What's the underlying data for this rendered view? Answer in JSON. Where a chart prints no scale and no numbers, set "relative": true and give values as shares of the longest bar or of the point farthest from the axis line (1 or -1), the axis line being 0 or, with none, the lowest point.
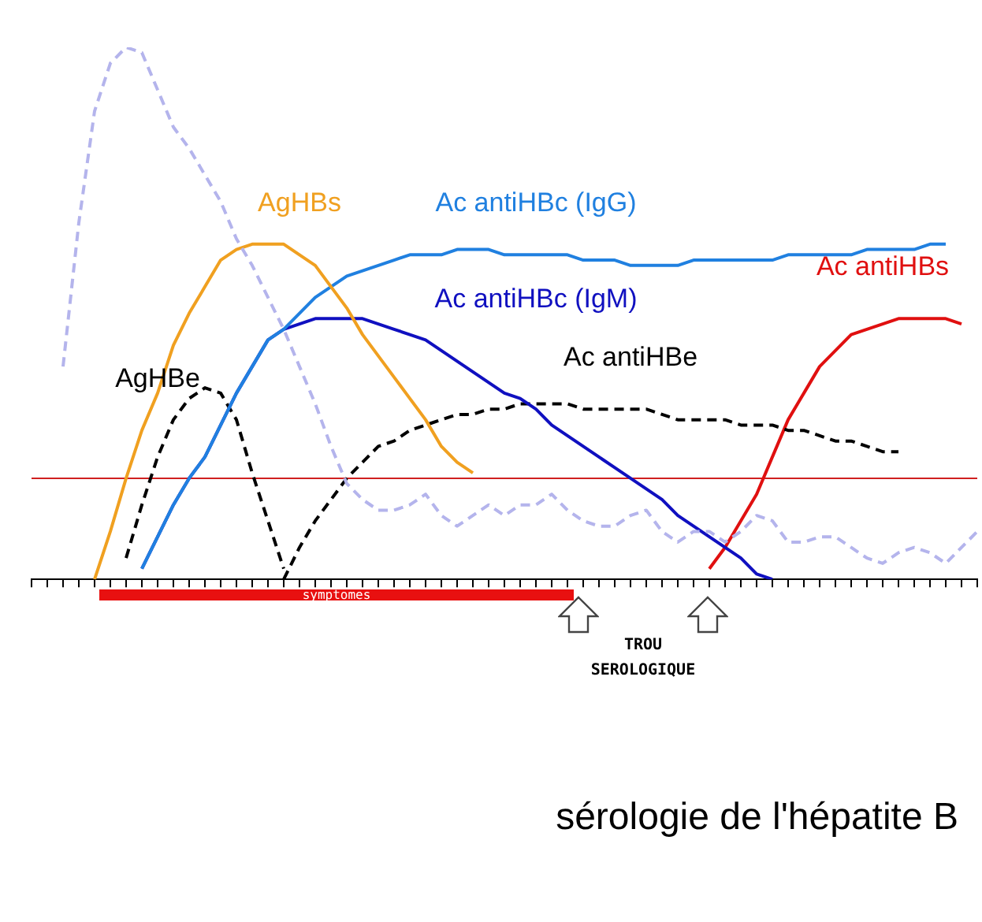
{
  "chart_data": {
    "type": "line",
    "title": "sérologie de l'hépatite B",
    "relative": true,
    "legend": false,
    "grid": false,
    "marker": "none",
    "categories": [
      null,
      null,
      null,
      null,
      null,
      null,
      null,
      null,
      null,
      null,
      null,
      null,
      null,
      null,
      null,
      null,
      null,
      null,
      null,
      null,
      null,
      null,
      null,
      null,
      null,
      null,
      null,
      null,
      null,
      null,
      null,
      null,
      null,
      null,
      null,
      null,
      null,
      null,
      null,
      null,
      null,
      null,
      null,
      null,
      null,
      null,
      null,
      null,
      null,
      null,
      null,
      null,
      null,
      null,
      null,
      null,
      null,
      null,
      null,
      null,
      null
    ],
    "series": [
      {
        "color": "#b4b4ec",
        "line_style": "dashed",
        "values": [
          null,
          null,
          0.4,
          0.67,
          0.88,
          0.97,
          1.0,
          0.99,
          0.92,
          0.85,
          0.81,
          0.76,
          0.71,
          0.64,
          0.59,
          0.53,
          0.47,
          0.4,
          0.33,
          0.25,
          0.18,
          0.15,
          0.13,
          0.13,
          0.14,
          0.16,
          0.12,
          0.1,
          0.12,
          0.14,
          0.12,
          0.14,
          0.14,
          0.16,
          0.13,
          0.11,
          0.1,
          0.1,
          0.12,
          0.13,
          0.09,
          0.07,
          0.09,
          0.09,
          0.07,
          0.09,
          0.12,
          0.11,
          0.07,
          0.07,
          0.08,
          0.08,
          0.06,
          0.04,
          0.03,
          0.05,
          0.06,
          0.05,
          0.03,
          0.06,
          0.09
        ]
      },
      {
        "name": "AgHBs",
        "color": "#f0a020",
        "line_style": "solid",
        "values": [
          null,
          null,
          null,
          null,
          0,
          0.09,
          0.19,
          0.28,
          0.35,
          0.44,
          0.5,
          0.55,
          0.6,
          0.62,
          0.63,
          0.63,
          0.63,
          0.61,
          0.59,
          0.55,
          0.51,
          0.46,
          0.42,
          0.38,
          0.34,
          0.3,
          0.25,
          0.22,
          0.2,
          null,
          null,
          null,
          null,
          null,
          null,
          null,
          null,
          null,
          null,
          null,
          null,
          null,
          null,
          null,
          null,
          null,
          null,
          null,
          null,
          null,
          null,
          null,
          null,
          null,
          null,
          null,
          null,
          null,
          null,
          null,
          null
        ]
      },
      {
        "name": "Ac antiHBc (IgG)",
        "color": "#2080e0",
        "line_style": "solid",
        "values": [
          null,
          null,
          null,
          null,
          null,
          null,
          null,
          0.02,
          0.08,
          0.14,
          0.19,
          0.23,
          0.29,
          0.35,
          0.4,
          0.45,
          0.47,
          0.5,
          0.53,
          0.55,
          0.57,
          0.58,
          0.59,
          0.6,
          0.61,
          0.61,
          0.61,
          0.62,
          0.62,
          0.62,
          0.61,
          0.61,
          0.61,
          0.61,
          0.61,
          0.6,
          0.6,
          0.6,
          0.59,
          0.59,
          0.59,
          0.59,
          0.6,
          0.6,
          0.6,
          0.6,
          0.6,
          0.6,
          0.61,
          0.61,
          0.61,
          0.61,
          0.61,
          0.62,
          0.62,
          0.62,
          0.62,
          0.63,
          0.63,
          null,
          null
        ]
      },
      {
        "name": "Ac antiHBc (IgM)",
        "color": "#1010c0",
        "line_style": "solid",
        "values": [
          null,
          null,
          null,
          null,
          null,
          null,
          null,
          0.02,
          0.08,
          0.14,
          0.19,
          0.23,
          0.29,
          0.35,
          0.4,
          0.45,
          0.47,
          0.48,
          0.49,
          0.49,
          0.49,
          0.49,
          0.48,
          0.47,
          0.46,
          0.45,
          0.43,
          0.41,
          0.39,
          0.37,
          0.35,
          0.34,
          0.32,
          0.29,
          0.27,
          0.25,
          0.23,
          0.21,
          0.19,
          0.17,
          0.15,
          0.12,
          0.1,
          0.08,
          0.06,
          0.04,
          0.01,
          0,
          null,
          null,
          null,
          null,
          null,
          null,
          null,
          null,
          null,
          null,
          null,
          null,
          null
        ]
      },
      {
        "name": "AgHBe",
        "color": "#000000",
        "line_style": "dashed",
        "values": [
          null,
          null,
          null,
          null,
          null,
          null,
          0.04,
          0.14,
          0.23,
          0.3,
          0.34,
          0.36,
          0.35,
          0.3,
          0.2,
          0.11,
          0.02,
          null,
          null,
          null,
          null,
          null,
          null,
          null,
          null,
          null,
          null,
          null,
          null,
          null,
          null,
          null,
          null,
          null,
          null,
          null,
          null,
          null,
          null,
          null,
          null,
          null,
          null,
          null,
          null,
          null,
          null,
          null,
          null,
          null,
          null,
          null,
          null,
          null,
          null,
          null,
          null,
          null,
          null,
          null,
          null
        ]
      },
      {
        "name": "Ac antiHBe",
        "color": "#000000",
        "line_style": "dashed",
        "values": [
          null,
          null,
          null,
          null,
          null,
          null,
          null,
          null,
          null,
          null,
          null,
          null,
          null,
          null,
          null,
          null,
          0,
          0.06,
          0.11,
          0.15,
          0.19,
          0.22,
          0.25,
          0.26,
          0.28,
          0.29,
          0.3,
          0.31,
          0.31,
          0.32,
          0.32,
          0.33,
          0.33,
          0.33,
          0.33,
          0.32,
          0.32,
          0.32,
          0.32,
          0.32,
          0.31,
          0.3,
          0.3,
          0.3,
          0.3,
          0.29,
          0.29,
          0.29,
          0.28,
          0.28,
          0.27,
          0.26,
          0.26,
          0.25,
          0.24,
          0.24,
          null,
          null,
          null,
          null,
          null
        ]
      },
      {
        "name": "Ac antiHBs",
        "color": "#e01010",
        "line_style": "solid",
        "values": [
          null,
          null,
          null,
          null,
          null,
          null,
          null,
          null,
          null,
          null,
          null,
          null,
          null,
          null,
          null,
          null,
          null,
          null,
          null,
          null,
          null,
          null,
          null,
          null,
          null,
          null,
          null,
          null,
          null,
          null,
          null,
          null,
          null,
          null,
          null,
          null,
          null,
          null,
          null,
          null,
          null,
          null,
          null,
          0.02,
          0.06,
          0.11,
          0.16,
          0.23,
          0.3,
          0.35,
          0.4,
          0.43,
          0.46,
          0.47,
          0.48,
          0.49,
          0.49,
          0.49,
          0.49,
          0.48,
          null
        ]
      }
    ],
    "ref_lines": [
      {
        "axis": "y",
        "value": 0.19,
        "color": "#d02020"
      }
    ],
    "annotations": [
      "symptomes",
      "TROU SEROLOGIQUE"
    ]
  }
}
